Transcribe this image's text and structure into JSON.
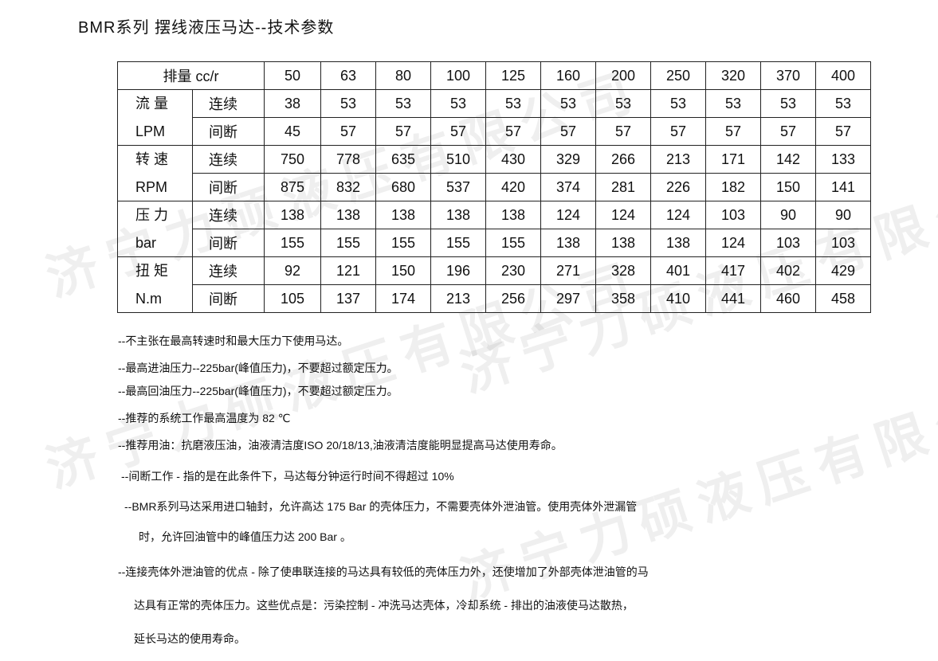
{
  "title": "BMR系列 摆线液压马达--技术参数",
  "watermark": "济宁力硕液压有限公司",
  "table": {
    "header_label": "排量 cc/r",
    "displacements": [
      "50",
      "63",
      "80",
      "100",
      "125",
      "160",
      "200",
      "250",
      "320",
      "370",
      "400"
    ],
    "groups": [
      {
        "label": "流 量",
        "unit": "LPM",
        "rows": [
          {
            "mode": "连续",
            "values": [
              "38",
              "53",
              "53",
              "53",
              "53",
              "53",
              "53",
              "53",
              "53",
              "53",
              "53"
            ]
          },
          {
            "mode": "间断",
            "values": [
              "45",
              "57",
              "57",
              "57",
              "57",
              "57",
              "57",
              "57",
              "57",
              "57",
              "57"
            ]
          }
        ]
      },
      {
        "label": "转 速",
        "unit": "RPM",
        "rows": [
          {
            "mode": "连续",
            "values": [
              "750",
              "778",
              "635",
              "510",
              "430",
              "329",
              "266",
              "213",
              "171",
              "142",
              "133"
            ]
          },
          {
            "mode": "间断",
            "values": [
              "875",
              "832",
              "680",
              "537",
              "420",
              "374",
              "281",
              "226",
              "182",
              "150",
              "141"
            ]
          }
        ]
      },
      {
        "label": "压 力",
        "unit": "bar",
        "rows": [
          {
            "mode": "连续",
            "values": [
              "138",
              "138",
              "138",
              "138",
              "138",
              "124",
              "124",
              "124",
              "103",
              "90",
              "90"
            ]
          },
          {
            "mode": "间断",
            "values": [
              "155",
              "155",
              "155",
              "155",
              "155",
              "138",
              "138",
              "138",
              "124",
              "103",
              "103"
            ]
          }
        ]
      },
      {
        "label": "扭 矩",
        "unit": "N.m",
        "rows": [
          {
            "mode": "连续",
            "values": [
              "92",
              "121",
              "150",
              "196",
              "230",
              "271",
              "328",
              "401",
              "417",
              "402",
              "429"
            ]
          },
          {
            "mode": "间断",
            "values": [
              "105",
              "137",
              "174",
              "213",
              "256",
              "297",
              "358",
              "410",
              "441",
              "460",
              "458"
            ]
          }
        ]
      }
    ]
  },
  "notes": [
    "--不主张在最高转速时和最大压力下使用马达。",
    "--最高进油压力--225bar(峰值压力)，不要超过额定压力。",
    "--最高回油压力--225bar(峰值压力)，不要超过额定压力。",
    "--推荐的系统工作最高温度为 82 ℃",
    "--推荐用油：抗磨液压油，油液清洁度ISO 20/18/13,油液清洁度能明显提高马达使用寿命。",
    "--间断工作 - 指的是在此条件下，马达每分钟运行时间不得超过 10%",
    "--BMR系列马达采用进口轴封，允许高达 175 Bar 的壳体压力，不需要壳体外泄油管。使用壳体外泄漏管",
    "时，允许回油管中的峰值压力达 200 Bar 。",
    "--连接壳体外泄油管的优点 - 除了使串联连接的马达具有较低的壳体压力外，还使增加了外部壳体泄油管的马",
    "达具有正常的壳体压力。这些优点是：污染控制 - 冲洗马达壳体，冷却系统 - 排出的油液使马达散热，",
    "延长马达的使用寿命。"
  ]
}
